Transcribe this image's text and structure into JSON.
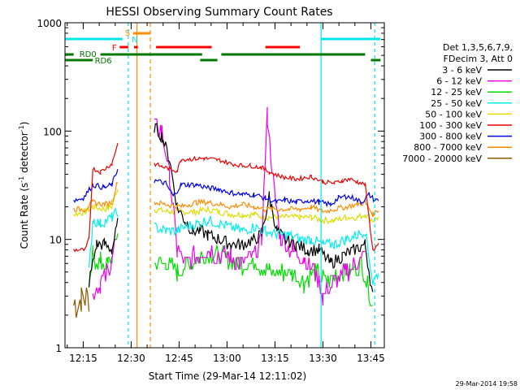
{
  "chart_data": {
    "type": "line",
    "title": "HESSI Observing Summary Count Rates",
    "xlabel": "Start Time (29-Mar-14 12:11:02)",
    "ylabel_main": "Count Rate (s",
    "ylabel_sup1": "-1",
    "ylabel_mid": " detector",
    "ylabel_sup2": "-1",
    "ylabel_end": ")",
    "xlim_minutes": [
      12.18,
      13.8
    ],
    "ylim": [
      1,
      1000
    ],
    "yscale": "log",
    "x_ticks": [
      "12:15",
      "12:30",
      "12:45",
      "13:00",
      "13:15",
      "13:30",
      "13:45"
    ],
    "y_ticks": [
      "1",
      "10",
      "100",
      "1000"
    ],
    "legend_header": [
      "Det 1,3,5,6,7,9,",
      "FDecim 3, Att 0"
    ],
    "footer_date": "29-Mar-2014 19:58",
    "flags": [
      {
        "label": "N",
        "color": "#00e5e5"
      },
      {
        "label": "S",
        "color": "#ff8c00"
      },
      {
        "label": "F",
        "color": "#ff0000"
      },
      {
        "label": "RD0",
        "color": "#007700"
      },
      {
        "label": "RD6",
        "color": "#007700"
      }
    ],
    "series": [
      {
        "name": "3 - 6 keV",
        "color": "#000000",
        "x": [
          12.2,
          12.28,
          12.3,
          12.33,
          12.36,
          12.38,
          12.4,
          12.42,
          12.44,
          12.46,
          12.48,
          12.5,
          12.55,
          12.6,
          12.7,
          12.75,
          12.8,
          12.85,
          12.9,
          12.93,
          12.96,
          13.0,
          13.04,
          13.08,
          13.12,
          13.16,
          13.19,
          13.21,
          13.24,
          13.28,
          13.32,
          13.36,
          13.4,
          13.44,
          13.48,
          13.52,
          13.56,
          13.6,
          13.63,
          13.66,
          13.7,
          13.74,
          13.78
        ],
        "y": [
          null,
          null,
          null,
          null,
          null,
          null,
          null,
          null,
          null,
          null,
          null,
          null,
          null,
          null,
          null,
          null,
          null,
          null,
          null,
          null,
          null,
          null,
          null,
          null,
          null,
          null,
          null,
          null,
          null,
          null,
          null,
          null,
          null,
          null,
          null,
          null,
          null,
          null,
          null,
          null,
          null,
          null,
          null
        ]
      },
      {
        "name": "6 - 12 keV",
        "color": "#ee00ee",
        "x": [],
        "y": []
      },
      {
        "name": "12 - 25 keV",
        "color": "#00dd00",
        "x": [],
        "y": []
      },
      {
        "name": "25 - 50 keV",
        "color": "#00eeee",
        "x": [],
        "y": []
      },
      {
        "name": "50 - 100 keV",
        "color": "#dddd00",
        "x": [],
        "y": []
      },
      {
        "name": "100 - 300 keV",
        "color": "#ee0000",
        "x": [],
        "y": []
      },
      {
        "name": "300 - 800 keV",
        "color": "#0000ee",
        "x": [],
        "y": []
      },
      {
        "name": "800 - 7000 keV",
        "color": "#ff8c00",
        "x": [],
        "y": []
      },
      {
        "name": "7000 - 20000 keV",
        "color": "#8b5a00",
        "x": [],
        "y": []
      }
    ],
    "profiles": {
      "red": [
        [
          12.2,
          8
        ],
        [
          12.26,
          8
        ],
        [
          12.28,
          10
        ],
        [
          12.3,
          45
        ],
        [
          12.34,
          42
        ],
        [
          12.4,
          50
        ],
        [
          12.43,
          78
        ],
        [
          12.47,
          null
        ],
        [
          12.52,
          null
        ],
        [
          12.62,
          50
        ],
        [
          12.66,
          47
        ],
        [
          12.7,
          45
        ],
        [
          12.74,
          43
        ],
        [
          12.76,
          55
        ],
        [
          12.8,
          55
        ],
        [
          12.88,
          56
        ],
        [
          12.96,
          54
        ],
        [
          13.02,
          50
        ],
        [
          13.08,
          48
        ],
        [
          13.12,
          48
        ],
        [
          13.18,
          46
        ],
        [
          13.22,
          42
        ],
        [
          13.28,
          38
        ],
        [
          13.36,
          36
        ],
        [
          13.44,
          38
        ],
        [
          13.5,
          34
        ],
        [
          13.56,
          33
        ],
        [
          13.6,
          35
        ],
        [
          13.64,
          36
        ],
        [
          13.68,
          34
        ],
        [
          13.72,
          32
        ],
        [
          13.76,
          8
        ],
        [
          13.79,
          9
        ]
      ],
      "blue": [
        [
          12.2,
          23
        ],
        [
          12.25,
          24
        ],
        [
          12.3,
          32
        ],
        [
          12.36,
          30
        ],
        [
          12.4,
          32
        ],
        [
          12.43,
          45
        ],
        [
          12.47,
          null
        ],
        [
          12.52,
          null
        ],
        [
          12.62,
          35
        ],
        [
          12.68,
          33
        ],
        [
          12.72,
          25
        ],
        [
          12.76,
          32
        ],
        [
          12.84,
          32
        ],
        [
          12.9,
          30
        ],
        [
          12.96,
          29
        ],
        [
          13.02,
          27
        ],
        [
          13.08,
          26
        ],
        [
          13.14,
          26
        ],
        [
          13.2,
          24
        ],
        [
          13.26,
          22
        ],
        [
          13.3,
          23
        ],
        [
          13.36,
          22
        ],
        [
          13.42,
          23
        ],
        [
          13.48,
          22
        ],
        [
          13.54,
          21
        ],
        [
          13.58,
          24
        ],
        [
          13.62,
          25
        ],
        [
          13.66,
          24
        ],
        [
          13.7,
          22
        ],
        [
          13.74,
          26
        ],
        [
          13.77,
          23
        ],
        [
          13.79,
          23
        ]
      ],
      "orange": [
        [
          12.2,
          19
        ],
        [
          12.26,
          19
        ],
        [
          12.3,
          22
        ],
        [
          12.36,
          21
        ],
        [
          12.4,
          22
        ],
        [
          12.43,
          35
        ],
        [
          12.47,
          null
        ],
        [
          12.52,
          null
        ],
        [
          12.62,
          22
        ],
        [
          12.68,
          21
        ],
        [
          12.76,
          20
        ],
        [
          12.84,
          22
        ],
        [
          12.9,
          22
        ],
        [
          12.96,
          21
        ],
        [
          13.02,
          20
        ],
        [
          13.08,
          21
        ],
        [
          13.14,
          20
        ],
        [
          13.2,
          19
        ],
        [
          13.26,
          19
        ],
        [
          13.32,
          19
        ],
        [
          13.38,
          19
        ],
        [
          13.44,
          20
        ],
        [
          13.5,
          18
        ],
        [
          13.56,
          19
        ],
        [
          13.62,
          20
        ],
        [
          13.68,
          21
        ],
        [
          13.72,
          22
        ],
        [
          13.76,
          17
        ],
        [
          13.79,
          19
        ]
      ],
      "yellow": [
        [
          12.2,
          17
        ],
        [
          12.26,
          18
        ],
        [
          12.3,
          20
        ],
        [
          12.36,
          19
        ],
        [
          12.4,
          20
        ],
        [
          12.43,
          30
        ],
        [
          12.47,
          null
        ],
        [
          12.52,
          null
        ],
        [
          12.62,
          19
        ],
        [
          12.7,
          18
        ],
        [
          12.76,
          18
        ],
        [
          12.84,
          18
        ],
        [
          12.9,
          19
        ],
        [
          12.96,
          18
        ],
        [
          13.02,
          17
        ],
        [
          13.08,
          17
        ],
        [
          13.14,
          17
        ],
        [
          13.2,
          16
        ],
        [
          13.26,
          16
        ],
        [
          13.32,
          16
        ],
        [
          13.38,
          16
        ],
        [
          13.44,
          16
        ],
        [
          13.5,
          15
        ],
        [
          13.56,
          15
        ],
        [
          13.62,
          16
        ],
        [
          13.68,
          16
        ],
        [
          13.72,
          17
        ],
        [
          13.76,
          15
        ],
        [
          13.79,
          16
        ]
      ],
      "cyan": [
        [
          12.28,
          5
        ],
        [
          12.3,
          15
        ],
        [
          12.34,
          14
        ],
        [
          12.4,
          16
        ],
        [
          12.43,
          18
        ],
        [
          12.47,
          null
        ],
        [
          12.52,
          null
        ],
        [
          12.62,
          13
        ],
        [
          12.68,
          12
        ],
        [
          12.74,
          12
        ],
        [
          12.78,
          13
        ],
        [
          12.84,
          14
        ],
        [
          12.9,
          15
        ],
        [
          12.96,
          14
        ],
        [
          13.02,
          13
        ],
        [
          13.08,
          12
        ],
        [
          13.14,
          13
        ],
        [
          13.2,
          12
        ],
        [
          13.26,
          11
        ],
        [
          13.32,
          11
        ],
        [
          13.38,
          10
        ],
        [
          13.44,
          10
        ],
        [
          13.5,
          9
        ],
        [
          13.56,
          9
        ],
        [
          13.62,
          10
        ],
        [
          13.68,
          11
        ],
        [
          13.72,
          12
        ],
        [
          13.76,
          4
        ],
        [
          13.79,
          5
        ]
      ],
      "black": [
        [
          12.28,
          4
        ],
        [
          12.32,
          9
        ],
        [
          12.36,
          9
        ],
        [
          12.4,
          8
        ],
        [
          12.43,
          14
        ],
        [
          12.47,
          null
        ],
        [
          12.52,
          null
        ],
        [
          12.62,
          110
        ],
        [
          12.66,
          90
        ],
        [
          12.7,
          55
        ],
        [
          12.74,
          20
        ],
        [
          12.78,
          15
        ],
        [
          12.82,
          12
        ],
        [
          12.86,
          12
        ],
        [
          12.9,
          11
        ],
        [
          12.96,
          10
        ],
        [
          13.02,
          9
        ],
        [
          13.08,
          9
        ],
        [
          13.14,
          10
        ],
        [
          13.18,
          11
        ],
        [
          13.22,
          25
        ],
        [
          13.26,
          12
        ],
        [
          13.3,
          10
        ],
        [
          13.36,
          9
        ],
        [
          13.42,
          8
        ],
        [
          13.48,
          8
        ],
        [
          13.54,
          6
        ],
        [
          13.6,
          7
        ],
        [
          13.66,
          8
        ],
        [
          13.72,
          9
        ],
        [
          13.76,
          3
        ]
      ],
      "green": [
        [
          12.28,
          3
        ],
        [
          12.3,
          7
        ],
        [
          12.34,
          6
        ],
        [
          12.38,
          6
        ],
        [
          12.4,
          7
        ],
        [
          12.43,
          12
        ],
        [
          12.47,
          null
        ],
        [
          12.52,
          null
        ],
        [
          12.62,
          6
        ],
        [
          12.68,
          6
        ],
        [
          12.74,
          5
        ],
        [
          12.8,
          6
        ],
        [
          12.86,
          7
        ],
        [
          12.92,
          7
        ],
        [
          12.98,
          7
        ],
        [
          13.04,
          6
        ],
        [
          13.1,
          6
        ],
        [
          13.16,
          6
        ],
        [
          13.22,
          5
        ],
        [
          13.28,
          5
        ],
        [
          13.34,
          5
        ],
        [
          13.4,
          4
        ],
        [
          13.46,
          5
        ],
        [
          13.52,
          4
        ],
        [
          13.58,
          5
        ],
        [
          13.64,
          5
        ],
        [
          13.7,
          6
        ],
        [
          13.76,
          2.5
        ]
      ],
      "magenta": [
        [
          12.3,
          3
        ],
        [
          12.34,
          4
        ],
        [
          12.38,
          5
        ],
        [
          12.42,
          10
        ],
        [
          12.47,
          null
        ],
        [
          12.52,
          null
        ],
        [
          12.62,
          115
        ],
        [
          12.66,
          100
        ],
        [
          12.7,
          40
        ],
        [
          12.74,
          8
        ],
        [
          12.78,
          6
        ],
        [
          12.84,
          7
        ],
        [
          12.9,
          8
        ],
        [
          12.96,
          7
        ],
        [
          13.02,
          7
        ],
        [
          13.08,
          6
        ],
        [
          13.14,
          7
        ],
        [
          13.18,
          10
        ],
        [
          13.21,
          140
        ],
        [
          13.24,
          35
        ],
        [
          13.28,
          10
        ],
        [
          13.34,
          8
        ],
        [
          13.4,
          7
        ],
        [
          13.46,
          5
        ],
        [
          13.5,
          3
        ],
        [
          13.56,
          4
        ],
        [
          13.62,
          5
        ],
        [
          13.68,
          6
        ],
        [
          13.72,
          7
        ]
      ],
      "olive": [
        [
          12.2,
          2.5
        ],
        [
          12.24,
          2.8
        ],
        [
          12.28,
          3
        ]
      ]
    }
  }
}
